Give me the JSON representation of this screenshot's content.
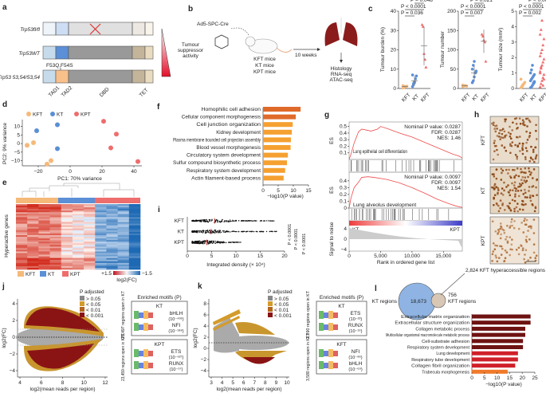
{
  "panels": {
    "a": {
      "label": "a",
      "rows": [
        "Trp53fl/fl",
        "Trp53WT",
        "Trp53 53,54/53,54"
      ],
      "mutation": "F53Q,F54S",
      "domains": [
        "TAD1",
        "TAD2",
        "DBD",
        "TET"
      ],
      "activity": [
        "Tumour",
        "suppressor",
        "activity"
      ]
    },
    "b": {
      "label": "b",
      "virus": "Ad5-SPC-Cre",
      "mice": [
        "KFT mice",
        "KT mice",
        "KPT mice"
      ],
      "time": "10 weeks",
      "assays": [
        "Histology",
        "RNA-seq",
        "ATAC-seq"
      ]
    },
    "c": {
      "label": "c"
    },
    "d": {
      "label": "d"
    },
    "e": {
      "label": "e",
      "ylabel": "Hyperactive genes",
      "legend": [
        "KFT",
        "KT",
        "KPT"
      ],
      "scale_max": "+1.5",
      "scale_min": "−1.5",
      "scale_label": "log2(FC)"
    },
    "f": {
      "label": "f"
    },
    "g": {
      "label": "g"
    },
    "h": {
      "label": "h",
      "rows": [
        "KFT",
        "KT",
        "KPT"
      ]
    },
    "i": {
      "label": "i"
    },
    "j": {
      "label": "j",
      "legend_title": "P adjusted",
      "legend": [
        "> 0.05",
        "< 0.05",
        "< 0.01",
        "< 0.001"
      ],
      "up": "21,497 regions open in KT",
      "down": "23,459 regions open in KPT",
      "motif_title": "Enriched motifs (P)",
      "box1": {
        "title": "KT",
        "motifs": [
          [
            "bHLH",
            "(10⁻⁴³⁶)"
          ],
          [
            "NFI",
            "(10⁻¹⁸⁸)"
          ]
        ]
      },
      "box2": {
        "title": "KPT",
        "motifs": [
          [
            "ETS",
            "(10⁻⁶²⁷)"
          ],
          [
            "RUNX",
            "(10⁻⁵⁷)"
          ]
        ]
      },
      "xlabel": "log2(mean reads per region)",
      "ylabel": "log2(FC)",
      "xticks": [
        "4",
        "6",
        "8",
        "10",
        "12"
      ],
      "yticks": [
        "4",
        "2",
        "0",
        "−2",
        "−4"
      ]
    },
    "k": {
      "label": "k",
      "legend_title": "P adjusted",
      "legend": [
        "> 0.05",
        "< 0.05",
        "< 0.01",
        "< 0.001"
      ],
      "up": "2,890 regions open in KT",
      "down": "3,580 regions open in KFT",
      "motif_title": "Enriched motifs (P)",
      "box1": {
        "title": "KT",
        "motifs": [
          [
            "ETS",
            "(10⁻²³)"
          ],
          [
            "RUNX",
            "(10⁻¹⁹)"
          ]
        ]
      },
      "box2": {
        "title": "KFT",
        "motifs": [
          [
            "NFI",
            "(10⁻⁸⁶)"
          ],
          [
            "bHLH",
            "(10⁻⁶⁹)"
          ]
        ]
      },
      "xlabel": "log2(mean reads per region)",
      "ylabel": "log2(FC)",
      "xticks": [
        "3",
        "4",
        "5",
        "6",
        "7",
        "8",
        "9",
        "10"
      ],
      "yticks": [
        "8",
        "6",
        "4",
        "2",
        "0",
        "−2",
        "−4"
      ]
    },
    "l": {
      "label": "l",
      "venn": {
        "left": "KT regions",
        "overlap_count": "18,673",
        "overlap_note": "2,824 KFT hyperaccessible regions",
        "right_count": "756",
        "right": "KFT regions"
      }
    }
  },
  "colors": {
    "KFT": "#f5b97a",
    "KT": "#5b8fd6",
    "KPT": "#ee6d6d",
    "dark_red": "#7a1111",
    "red": "#d0202a",
    "orange": "#f08a28",
    "gsea": "#ef4b4b"
  },
  "chart_data": [
    {
      "id": "c1",
      "type": "scatter",
      "ylabel": "Tumour burden (%)",
      "categories": [
        "KFT",
        "KT",
        "KPT"
      ],
      "ylim": [
        0,
        40
      ],
      "yticks": [
        "0",
        "10",
        "20",
        "30",
        "40"
      ],
      "values": [
        [
          0.3,
          0.6,
          0.8,
          1,
          1.2,
          1.5,
          0.5,
          1
        ],
        [
          1,
          2,
          3,
          5,
          6.5,
          7,
          2.5,
          3.5
        ],
        [
          33,
          32,
          18,
          15,
          11
        ]
      ],
      "mean_sd": [
        [
          1,
          0.4
        ],
        [
          4,
          2.5
        ],
        [
          22,
          10
        ]
      ],
      "pvalues": [
        "P = 0.048",
        "P < 0.0001",
        "P = 0.036"
      ]
    },
    {
      "id": "c2",
      "type": "scatter",
      "ylabel": "Tumour number",
      "categories": [
        "KFT",
        "KT",
        "KPT"
      ],
      "ylim": [
        0,
        200
      ],
      "yticks": [
        "0",
        "50",
        "100",
        "150",
        "200"
      ],
      "values": [
        [
          5,
          6,
          7,
          8,
          6,
          9
        ],
        [
          15,
          20,
          30,
          40,
          45,
          50,
          60,
          70
        ],
        [
          140,
          135,
          125,
          120,
          70
        ]
      ],
      "mean_sd": [
        [
          7,
          1.5
        ],
        [
          40,
          18
        ],
        [
          122,
          30
        ]
      ],
      "pvalues": [
        "P = 0.021",
        "P < 0.0001",
        "P = 0.007"
      ]
    },
    {
      "id": "c3",
      "type": "scatter",
      "ylabel": "Tumour size (mm²)",
      "categories": [
        "KFT",
        "KT",
        "KPT"
      ],
      "ylim": [
        0,
        5
      ],
      "yticks": [
        "0",
        "1",
        "2",
        "3",
        "4",
        "5"
      ],
      "values": [
        [
          0.05,
          0.1,
          0.2,
          0.3,
          0.4,
          0.6,
          0.15,
          0.25
        ],
        [
          0.05,
          0.1,
          0.2,
          0.3,
          0.4,
          0.5,
          0.6,
          0.7,
          0.8,
          0.9,
          1.0,
          1.2,
          1.5,
          0.35,
          0.45
        ],
        [
          0.1,
          0.3,
          0.5,
          0.7,
          0.9,
          1.1,
          1.3,
          1.5,
          1.7,
          1.9,
          2.1,
          2.3,
          2.5,
          2.8,
          3.2,
          3.5,
          3.8,
          4.4,
          0.2,
          0.6,
          1.0,
          1.4
        ]
      ],
      "pvalues": [
        "P < 0.0001",
        "P < 0.0001",
        "P = 0.002"
      ]
    },
    {
      "id": "d",
      "type": "scatter",
      "xlabel": "PC1: 70% variance",
      "ylabel": "PC2: 9% variance",
      "legend": [
        "KFT",
        "KT",
        "KPT"
      ],
      "legend_position": "top",
      "xticks": [
        "−20",
        "0",
        "20",
        "40"
      ],
      "yticks": [
        "10",
        "5",
        "0",
        "−5",
        "−10"
      ],
      "xlim": [
        -30,
        45
      ],
      "ylim": [
        -13,
        14
      ],
      "series": [
        {
          "name": "KFT",
          "points": [
            [
              -27,
              -1
            ],
            [
              -23,
              0.5
            ],
            [
              -12,
              -10
            ],
            [
              -14.5,
              -12
            ]
          ]
        },
        {
          "name": "KT",
          "points": [
            [
              -21,
              7.5
            ],
            [
              -8,
              11
            ],
            [
              -8,
              -3
            ]
          ]
        },
        {
          "name": "KPT",
          "points": [
            [
              21,
              13
            ],
            [
              29,
              5.5
            ],
            [
              25.5,
              -2.5
            ],
            [
              42.5,
              -10.5
            ]
          ]
        }
      ]
    },
    {
      "id": "f",
      "type": "bar",
      "orientation": "horizontal",
      "xlabel": "−log10(P value)",
      "xlim": [
        0,
        15
      ],
      "xticks": [
        "0",
        "5",
        "10",
        "15"
      ],
      "categories": [
        "Homophilic cell adhesion",
        "Cellular component morphogenesis",
        "Cell junction organization",
        "Kidney development",
        "Plasma membrane bounded cell projection assembly",
        "Blood vessel morphogenesis",
        "Circulatory system development",
        "Sulfur compound biosynthetic process",
        "Respiratory system development",
        "Actin filament-based process"
      ],
      "values": [
        12.4,
        10.8,
        9.8,
        9.5,
        9.2,
        9.1,
        8.2,
        7.9,
        7.3,
        6.8
      ]
    },
    {
      "id": "g",
      "type": "line",
      "xlabel": "Rank in ordered gene list",
      "xlim": [
        0,
        18000
      ],
      "xticks": [
        "0",
        "5,000",
        "10,000",
        "15,000"
      ],
      "series": [
        {
          "name": "Lung epithelial cell differentiation",
          "ylabel": "ES",
          "yticks": [
            "0.1",
            "0.2",
            "0.3",
            "0.4",
            "0.5"
          ],
          "stats": [
            "Nominal P value: 0.0287",
            "FDR: 0.0287",
            "NES: 1.46"
          ],
          "x": [
            0,
            300,
            800,
            1500,
            2000,
            3500,
            4500,
            5000,
            6000,
            8000,
            10000,
            12000,
            14000,
            15500,
            16500,
            17500,
            18000
          ],
          "y": [
            0.0,
            0.08,
            0.25,
            0.42,
            0.46,
            0.43,
            0.46,
            0.5,
            0.47,
            0.4,
            0.34,
            0.26,
            0.18,
            0.12,
            0.08,
            0.05,
            0.02
          ]
        },
        {
          "name": "Lung alveolus development",
          "ylabel": "ES",
          "yticks": [
            "0",
            "0.1",
            "0.2",
            "0.3",
            "0.4"
          ],
          "stats": [
            "Nominal P value: 0.0097",
            "FDR: 0.0097",
            "NES: 1.54"
          ],
          "x": [
            0,
            300,
            800,
            1500,
            2000,
            3000,
            4000,
            6000,
            8000,
            10000,
            12000,
            14000,
            16000,
            17000,
            18000
          ],
          "y": [
            0.0,
            0.15,
            0.3,
            0.38,
            0.45,
            0.46,
            0.45,
            0.42,
            0.37,
            0.3,
            0.22,
            0.13,
            0.06,
            0.03,
            0.01
          ]
        }
      ],
      "signal_label": "Signal to noise",
      "signal_ticks": [
        "4",
        "0",
        "−4"
      ],
      "gradient_labels": [
        "KT",
        "KPT"
      ]
    },
    {
      "id": "i",
      "type": "scatter",
      "xlabel": "Integrated density (× 10⁴)",
      "xlim": [
        0,
        20
      ],
      "xticks": [
        "0",
        "5",
        "10",
        "15",
        "20"
      ],
      "categories": [
        "KFT",
        "KT",
        "KPT"
      ],
      "medians": [
        5.6,
        4.9,
        4.0
      ],
      "ranges": [
        [
          1,
          18
        ],
        [
          1,
          18.5
        ],
        [
          1,
          11
        ]
      ],
      "pvalues": [
        "P < 0.0001",
        "P < 0.0001",
        "P < 0.0001"
      ]
    },
    {
      "id": "l",
      "type": "bar",
      "orientation": "horizontal",
      "xlabel": "−log10(P value)",
      "xlim": [
        0,
        25
      ],
      "xticks": [
        "0",
        "5",
        "10",
        "15",
        "20",
        "25"
      ],
      "categories": [
        "Extracellular matrix organization",
        "Extracellular structure organization",
        "Collagen metabolic process",
        "Multicellular organismal macromolecule metabolic process",
        "Cell-substrate adhesion",
        "Respiratory system development",
        "Lung development",
        "Respiratory tube development",
        "Collagen fibril organization",
        "Trabecula morphogenesis"
      ],
      "values": [
        23.3,
        23.3,
        21.2,
        21.2,
        20.3,
        20.3,
        18.3,
        18.3,
        17.2,
        14.2
      ]
    }
  ]
}
